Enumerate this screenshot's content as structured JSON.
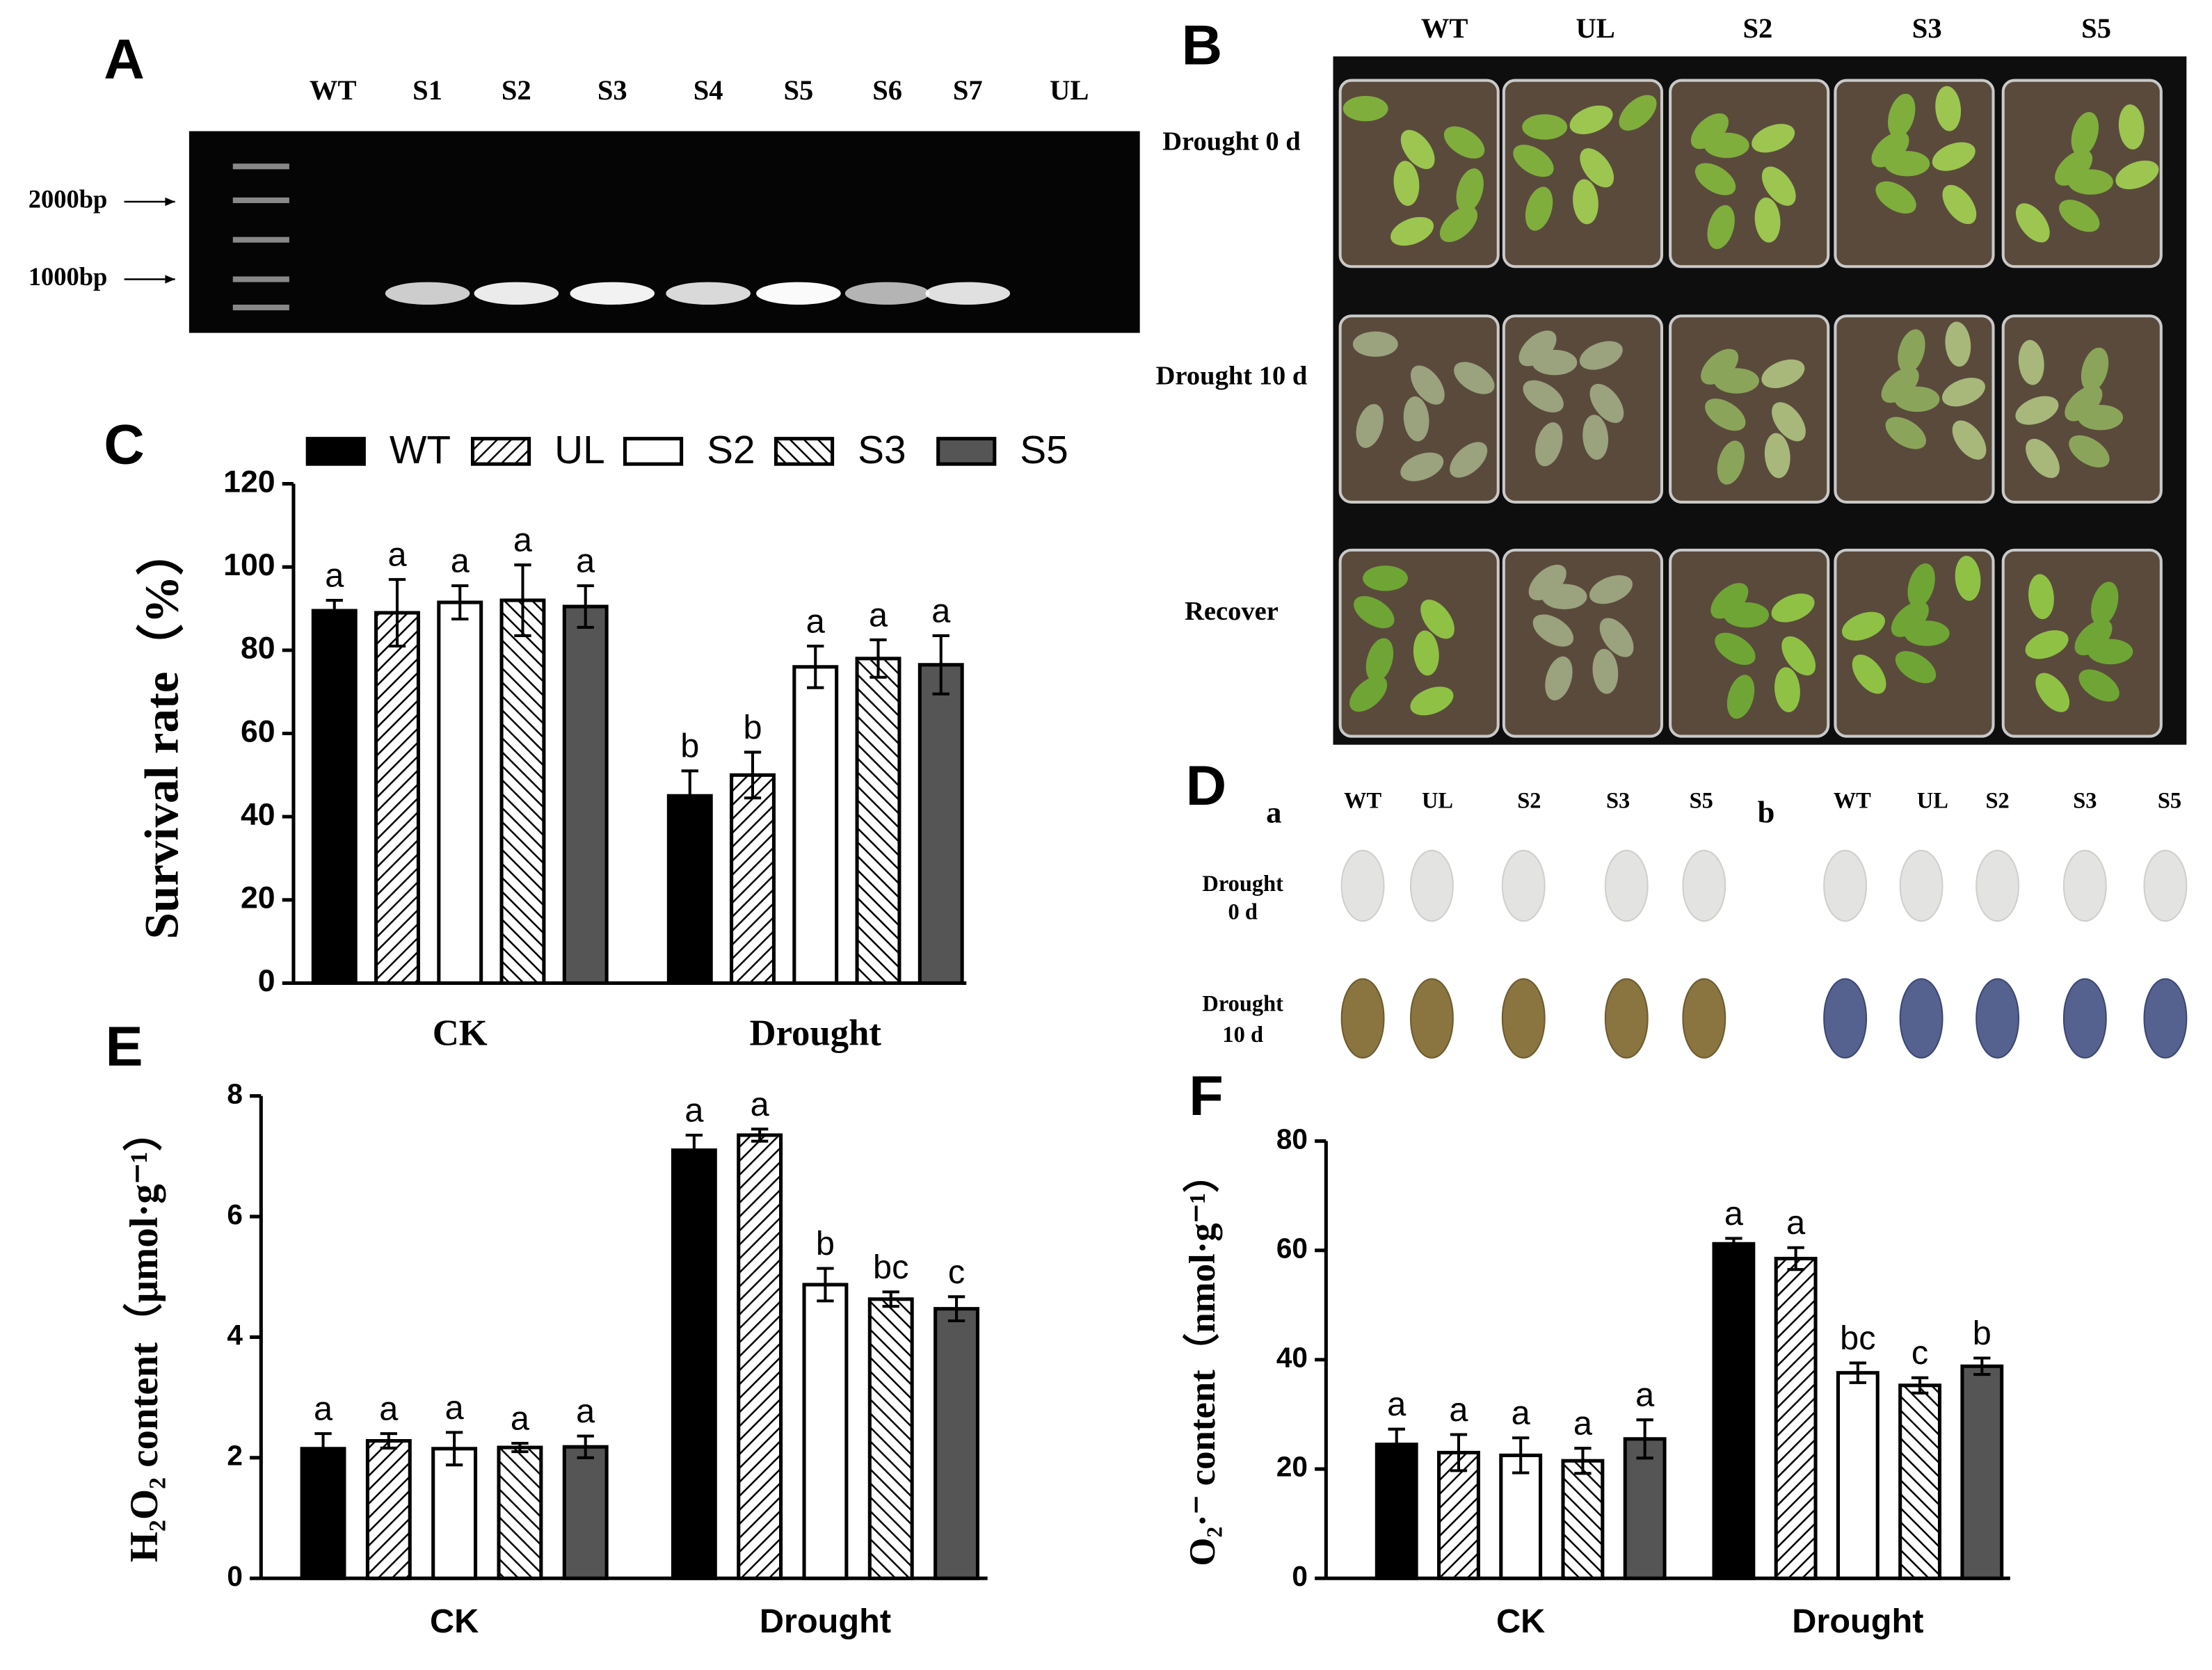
{
  "figure": {
    "panels": [
      "A",
      "B",
      "C",
      "D",
      "E",
      "F"
    ],
    "gel": {
      "lanes": [
        "WT",
        "S1",
        "S2",
        "S3",
        "S4",
        "S5",
        "S6",
        "S7",
        "UL"
      ],
      "markers": [
        "2000bp",
        "1000bp"
      ]
    },
    "photos": {
      "columns": [
        "WT",
        "UL",
        "S2",
        "S3",
        "S5"
      ],
      "rows": [
        "Drought 0 d",
        "Drought 10 d",
        "Recover"
      ]
    },
    "staining": {
      "sublabels": [
        "a",
        "b"
      ],
      "columns": [
        [
          "WT",
          "UL",
          "S2",
          "S3",
          "S5"
        ],
        [
          "WT",
          "UL",
          "S2",
          "S3",
          "S5"
        ]
      ],
      "rows": [
        [
          "Drought",
          "0 d"
        ],
        [
          "Drought",
          "10 d"
        ]
      ]
    }
  },
  "chart_data": [
    {
      "type": "bar",
      "y_label": "Survival rate（%）",
      "categories": [
        "CK",
        "Drought"
      ],
      "ylim": [
        0,
        120
      ],
      "yticks": [
        0,
        20,
        40,
        60,
        80,
        100,
        120
      ],
      "legend": "top",
      "series": [
        {
          "name": "WT",
          "color": "#000000",
          "hatch": "none",
          "values": [
            89.5,
            45
          ],
          "errors": [
            2.5,
            6
          ],
          "letters": [
            "a",
            "b"
          ]
        },
        {
          "name": "UL",
          "color": "#ffffff",
          "hatch": "forward",
          "values": [
            89,
            50
          ],
          "errors": [
            8,
            5.5
          ],
          "letters": [
            "a",
            "b"
          ]
        },
        {
          "name": "S2",
          "color": "#ffffff",
          "hatch": "none",
          "values": [
            91.5,
            76
          ],
          "errors": [
            4,
            5
          ],
          "letters": [
            "a",
            "a"
          ]
        },
        {
          "name": "S3",
          "color": "#ffffff",
          "hatch": "back",
          "values": [
            92,
            78
          ],
          "errors": [
            8.5,
            4.5
          ],
          "letters": [
            "a",
            "a"
          ]
        },
        {
          "name": "S5",
          "color": "#555555",
          "hatch": "none",
          "values": [
            90.5,
            76.5
          ],
          "errors": [
            5,
            7
          ],
          "letters": [
            "a",
            "a"
          ]
        }
      ]
    },
    {
      "type": "bar",
      "y_label": "H₂O₂ content（μmol·g⁻¹）",
      "categories": [
        "CK",
        "Drought"
      ],
      "ylim": [
        0,
        8
      ],
      "yticks": [
        0,
        2,
        4,
        6,
        8
      ],
      "series": [
        {
          "color": "#000000",
          "hatch": "none",
          "values": [
            2.15,
            7.1
          ],
          "errors": [
            0.25,
            0.25
          ],
          "letters": [
            "a",
            "a"
          ]
        },
        {
          "color": "#ffffff",
          "hatch": "forward",
          "values": [
            2.28,
            7.35
          ],
          "errors": [
            0.12,
            0.1
          ],
          "letters": [
            "a",
            "a"
          ]
        },
        {
          "color": "#ffffff",
          "hatch": "none",
          "values": [
            2.15,
            4.87
          ],
          "errors": [
            0.27,
            0.27
          ],
          "letters": [
            "a",
            "b"
          ]
        },
        {
          "color": "#ffffff",
          "hatch": "back",
          "values": [
            2.17,
            4.63
          ],
          "errors": [
            0.07,
            0.12
          ],
          "letters": [
            "a",
            "bc"
          ]
        },
        {
          "color": "#555555",
          "hatch": "none",
          "values": [
            2.18,
            4.47
          ],
          "errors": [
            0.18,
            0.2
          ],
          "letters": [
            "a",
            "c"
          ]
        }
      ]
    },
    {
      "type": "bar",
      "y_label": "O₂·⁻ content（nmol·g⁻¹）",
      "categories": [
        "CK",
        "Drought"
      ],
      "ylim": [
        0,
        80
      ],
      "yticks": [
        0,
        20,
        40,
        60,
        80
      ],
      "series": [
        {
          "color": "#000000",
          "hatch": "none",
          "values": [
            24.5,
            61.2
          ],
          "errors": [
            2.8,
            1
          ],
          "letters": [
            "a",
            "a"
          ]
        },
        {
          "color": "#ffffff",
          "hatch": "forward",
          "values": [
            23,
            58.5
          ],
          "errors": [
            3.3,
            2
          ],
          "letters": [
            "a",
            "a"
          ]
        },
        {
          "color": "#ffffff",
          "hatch": "none",
          "values": [
            22.5,
            37.6
          ],
          "errors": [
            3.2,
            1.8
          ],
          "letters": [
            "a",
            "bc"
          ]
        },
        {
          "color": "#ffffff",
          "hatch": "back",
          "values": [
            21.5,
            35.3
          ],
          "errors": [
            2.3,
            1.4
          ],
          "letters": [
            "a",
            "c"
          ]
        },
        {
          "color": "#555555",
          "hatch": "none",
          "values": [
            25.5,
            38.8
          ],
          "errors": [
            3.5,
            1.5
          ],
          "letters": [
            "a",
            "b"
          ]
        }
      ]
    }
  ]
}
